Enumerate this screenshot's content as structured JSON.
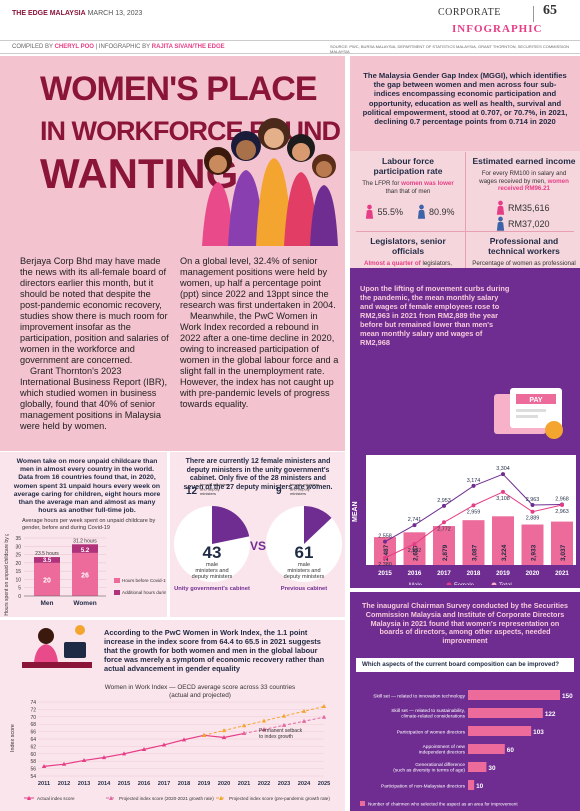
{
  "header": {
    "brand": "THE EDGE MALAYSIA",
    "date": "MARCH 13, 2023",
    "section": "CORPORATE",
    "page": "65",
    "label": "INFOGRAPHIC"
  },
  "credits": {
    "left": "COMPILED BY",
    "compiler": "CHERYL POO",
    "mid": "| INFOGRAPHIC BY",
    "designer": "RAJITA SIVAN/THE EDGE",
    "source": "SOURCE: PWC, BURSA MALAYSIA, DEPARTMENT OF STATISTICS MALAYSIA, GRANT THORNTON, SECURITIES COMMISSION MALAYSIA"
  },
  "title": {
    "line1": "WOMEN'S PLACE",
    "line2": "IN WORKFORCE FOUND",
    "line3": "WANTING"
  },
  "body": {
    "col1": [
      "Berjaya Corp Bhd may have made the news with its all-female board of directors earlier this month, but it should be noted that despite the post-pandemic economic recovery, studies show there is much room for improvement insofar as the participation, position and salaries of women in the workforce and government are concerned.",
      "Grant Thornton's 2023 International Business Report (IBR), which studied women in business globally, found that 40% of senior management positions in Malaysia were held by women."
    ],
    "col2": [
      "On a global level, 32.4% of senior management positions were held by women, up half a percentage point (ppt) since 2022 and 13ppt since the research was first undertaken in 2004.",
      "Meanwhile, the PwC Women in Work Index recorded a rebound in 2022 after a one-time decline in 2020, owing to increased participation of women in the global labour force and a slight fall in the unemployment rate. However, the index has not caught up with pre-pandemic levels of progress towards equality."
    ]
  },
  "mggi": {
    "intro": "The Malaysia Gender Gap Index (MGGI), which identifies the gap between women and men across four sub-indices encompassing economic participation and opportunity, education as well as health, survival and political empowerment, stood at 0.707, or 70.7%, in 2021, declining 0.7 percentage points from 0.714 in 2020",
    "cells": [
      {
        "title": "Labour force participation rate",
        "desc_a": "The LFPR for ",
        "desc_hl": "women was lower",
        "desc_b": " than that of men",
        "female": "55.5%",
        "male": "80.9%"
      },
      {
        "title": "Estimated earned income",
        "desc_a": "For every RM100 in salary and wages received by men, ",
        "desc_hl": "women received RM96.21",
        "desc_b": "",
        "female": "RM35,616",
        "male": "RM37,020"
      },
      {
        "title": "Legislators, senior officials",
        "desc_a": "",
        "desc_hl": "Almost a quarter of",
        "desc_b": " legislators, senior officials and managers were women",
        "female": "24.0%",
        "male": "76.0%"
      },
      {
        "title": "Professional and technical workers",
        "desc_a": "Percentage of women as professional and technical workers was ",
        "desc_hl": "less than",
        "desc_b": " that of men",
        "female": "40.6%",
        "male": "59.4%"
      }
    ]
  },
  "salary": {
    "text": "Upon the lifting of movement curbs during the pandemic, the mean monthly salary and wages of female employees rose to RM2,963 in 2021 from RM2,889 the year before but remained lower than men's mean monthly salary and wages of RM2,968",
    "side_label": "MEAN",
    "pay_label": "PAY",
    "legend": {
      "male": "Male",
      "female": "Female",
      "total": "Total"
    }
  },
  "chart_data": [
    {
      "type": "bar",
      "title": "",
      "categories": [
        "2015",
        "2016",
        "2017",
        "2018",
        "2019",
        "2020",
        "2021"
      ],
      "series": [
        {
          "name": "Total",
          "values": [
            2487,
            2657,
            2879,
            3087,
            3224,
            2933,
            3037
          ]
        }
      ],
      "lines": [
        {
          "name": "Male",
          "values": [
            2558,
            2741,
            2953,
            3174,
            3304,
            2963,
            2968
          ]
        },
        {
          "name": "Female",
          "values": [
            2380,
            2532,
            2772,
            2959,
            3108,
            2889,
            2963
          ]
        }
      ]
    },
    {
      "type": "bar",
      "title": "Average hours per week spent on unpaid childcare by gender, before and during Covid-19",
      "ylabel": "Hours spent on unpaid childcare by gender",
      "categories": [
        "Men",
        "Women"
      ],
      "series": [
        {
          "name": "Hours before Covid-19",
          "values": [
            20,
            26
          ]
        },
        {
          "name": "Additional hours during Covid-19",
          "values": [
            3.5,
            5.2
          ]
        }
      ],
      "totals": [
        "23.5 hours",
        "31.2 hours"
      ],
      "ylim": [
        0,
        35
      ],
      "yticks": [
        "0",
        "5",
        "10",
        "15",
        "20",
        "25",
        "30",
        "35"
      ]
    },
    {
      "type": "line",
      "title": "Women in Work Index — OECD average score across 33 countries (actual and projected)",
      "ylabel": "Index score",
      "x": [
        "2011",
        "2012",
        "2013",
        "2014",
        "2015",
        "2016",
        "2017",
        "2018",
        "2019",
        "2020",
        "2021",
        "2022",
        "2023",
        "2024",
        "2025"
      ],
      "series": [
        {
          "name": "Actual index score",
          "values": [
            56.6,
            57.2,
            58.2,
            59.0,
            60.0,
            61.2,
            62.4,
            63.8,
            65.0,
            64.4,
            65.5,
            null,
            null,
            null,
            null
          ]
        },
        {
          "name": "Projected index score (2020-2021 growth rate)",
          "values": [
            null,
            null,
            null,
            null,
            null,
            null,
            null,
            null,
            null,
            null,
            65.5,
            66.6,
            67.7,
            68.8,
            69.9
          ]
        },
        {
          "name": "Projected index score (pre-pandemic growth rate)",
          "values": [
            null,
            null,
            null,
            null,
            null,
            null,
            null,
            null,
            65.0,
            66.3,
            67.6,
            68.9,
            70.2,
            71.5,
            72.8
          ]
        }
      ],
      "ylim": [
        54,
        74
      ],
      "yticks": [
        "54",
        "56",
        "58",
        "60",
        "62",
        "64",
        "66",
        "68",
        "70",
        "72",
        "74"
      ],
      "annotation": "Permanent setback to index growth"
    },
    {
      "type": "bar",
      "title": "Which aspects of the current board composition can be improved?",
      "categories": [
        "Skill set — related to innovation technology",
        "Skill set — related to sustainability, climate-related considerations",
        "Participation of women directors",
        "Appointment of new independent directors",
        "Generational difference (such as diversity in terms of age)",
        "Participation of non-Malaysian directors"
      ],
      "values": [
        150,
        122,
        103,
        60,
        30,
        10
      ],
      "legend": "Number of chairmen who selected the aspect as an area for improvement"
    }
  ],
  "childcare": {
    "text": "Women take on more unpaid childcare than men in almost every country in the world. Data from 16 countries found that, in 2020, women spent 31 unpaid hours every week on average caring for children, eight hours more than the average man and almost as many hours as another full-time job.",
    "legend1": "Hours before Covid-19",
    "legend2": "Additional hours during Covid-19"
  },
  "cabinet": {
    "text": "There are currently 12 female ministers and deputy ministers in the unity government's cabinet. Only five of the 28 ministers and seven of the 27 deputy ministers are women.",
    "unity": {
      "female": "12",
      "female_lbl": "female ministers and deputy ministers",
      "male": "43",
      "male_lbl": "male ministers and deputy ministers",
      "name": "Unity government's cabinet",
      "female_frac": 0.218
    },
    "prev": {
      "female": "9",
      "female_lbl": "female ministers and deputy ministers",
      "male": "61",
      "male_lbl": "male ministers and deputy ministers",
      "name": "Previous cabinet",
      "female_frac": 0.129
    },
    "vs": "VS"
  },
  "wiw": {
    "text": "According to the PwC Women in Work Index, the 1.1 point increase in the index score from 64.4 to 65.5 in 2021 suggests that the growth for both women and men in the global labour force was merely a symptom of economic recovery rather than actual advancement in gender equality"
  },
  "board": {
    "text": "The inaugural Chairman Survey conducted by the Securities Commission Malaysia and Institute of Corporate Directors Malaysia in 2021 found that women's representation on boards of directors, among other aspects, needed improvement",
    "question": "Which aspects of the current board composition can be improved?"
  },
  "colors": {
    "maroon": "#8a1538",
    "pink": "#e63e86",
    "navy": "#1f2a44",
    "purple": "#6f2d91",
    "light": "#f3c3cf",
    "chartpink": "#ec6b9a"
  }
}
